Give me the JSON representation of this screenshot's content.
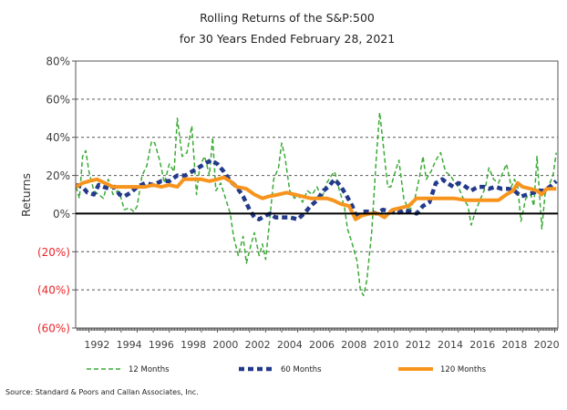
{
  "chart_data": {
    "type": "line",
    "title": "Rolling Returns of the S&P:500",
    "subtitle": "for 30 Years Ended February 28, 2021",
    "ylabel": "Returns",
    "xlabel": "",
    "xlim": [
      1991.17,
      2021.2
    ],
    "ylim": [
      -60,
      80
    ],
    "grid": "horizontal dashed",
    "legend_position": "bottom",
    "source": "Source: Standard & Poors and Callan Associates, Inc.",
    "y_ticks": [
      {
        "value": 80,
        "label": "80%"
      },
      {
        "value": 60,
        "label": "60%"
      },
      {
        "value": 40,
        "label": "40%"
      },
      {
        "value": 20,
        "label": "20%"
      },
      {
        "value": 0,
        "label": "0%"
      },
      {
        "value": -20,
        "label": "(20%)"
      },
      {
        "value": -40,
        "label": "(40%)"
      },
      {
        "value": -60,
        "label": "(60%)"
      }
    ],
    "x_ticks": [
      "1992",
      "1994",
      "1996",
      "1998",
      "2000",
      "2002",
      "2004",
      "2006",
      "2008",
      "2010",
      "2012",
      "2014",
      "2016",
      "2018",
      "2020"
    ],
    "colors": {
      "negative_label": "#e8262b",
      "axis_text": "#404040"
    },
    "series": [
      {
        "name": "12 Months",
        "color": "#3aaa35",
        "style": "dashed",
        "points": [
          [
            1991.2,
            14
          ],
          [
            1991.4,
            8
          ],
          [
            1991.6,
            30
          ],
          [
            1991.8,
            33
          ],
          [
            1992.0,
            22
          ],
          [
            1992.3,
            12
          ],
          [
            1992.6,
            10
          ],
          [
            1992.9,
            8
          ],
          [
            1993.2,
            18
          ],
          [
            1993.5,
            10
          ],
          [
            1993.8,
            12
          ],
          [
            1994.0,
            8
          ],
          [
            1994.2,
            2
          ],
          [
            1994.5,
            3
          ],
          [
            1994.8,
            1
          ],
          [
            1995.0,
            4
          ],
          [
            1995.3,
            20
          ],
          [
            1995.6,
            25
          ],
          [
            1995.9,
            38
          ],
          [
            1996.1,
            37
          ],
          [
            1996.4,
            28
          ],
          [
            1996.7,
            16
          ],
          [
            1997.0,
            26
          ],
          [
            1997.3,
            22
          ],
          [
            1997.5,
            50
          ],
          [
            1997.8,
            30
          ],
          [
            1998.1,
            32
          ],
          [
            1998.4,
            46
          ],
          [
            1998.7,
            10
          ],
          [
            1998.9,
            25
          ],
          [
            1999.2,
            30
          ],
          [
            1999.5,
            20
          ],
          [
            1999.7,
            40
          ],
          [
            1999.9,
            12
          ],
          [
            2000.2,
            16
          ],
          [
            2000.5,
            8
          ],
          [
            2000.8,
            0
          ],
          [
            2001.0,
            -12
          ],
          [
            2001.3,
            -22
          ],
          [
            2001.6,
            -12
          ],
          [
            2001.8,
            -26
          ],
          [
            2002.1,
            -16
          ],
          [
            2002.3,
            -10
          ],
          [
            2002.6,
            -22
          ],
          [
            2002.8,
            -16
          ],
          [
            2003.0,
            -24
          ],
          [
            2003.2,
            -8
          ],
          [
            2003.5,
            18
          ],
          [
            2003.8,
            24
          ],
          [
            2004.0,
            37
          ],
          [
            2004.2,
            30
          ],
          [
            2004.5,
            12
          ],
          [
            2004.8,
            8
          ],
          [
            2005.0,
            10
          ],
          [
            2005.3,
            6
          ],
          [
            2005.6,
            12
          ],
          [
            2005.9,
            10
          ],
          [
            2006.2,
            14
          ],
          [
            2006.5,
            8
          ],
          [
            2006.8,
            16
          ],
          [
            2007.1,
            20
          ],
          [
            2007.3,
            22
          ],
          [
            2007.6,
            12
          ],
          [
            2007.9,
            4
          ],
          [
            2008.1,
            -8
          ],
          [
            2008.4,
            -16
          ],
          [
            2008.7,
            -25
          ],
          [
            2008.9,
            -40
          ],
          [
            2009.1,
            -43
          ],
          [
            2009.3,
            -35
          ],
          [
            2009.6,
            -10
          ],
          [
            2009.9,
            30
          ],
          [
            2010.1,
            53
          ],
          [
            2010.3,
            38
          ],
          [
            2010.6,
            14
          ],
          [
            2010.8,
            14
          ],
          [
            2011.0,
            20
          ],
          [
            2011.3,
            28
          ],
          [
            2011.6,
            8
          ],
          [
            2011.8,
            4
          ],
          [
            2012.0,
            2
          ],
          [
            2012.3,
            8
          ],
          [
            2012.6,
            20
          ],
          [
            2012.8,
            30
          ],
          [
            2013.0,
            18
          ],
          [
            2013.3,
            22
          ],
          [
            2013.6,
            28
          ],
          [
            2013.9,
            32
          ],
          [
            2014.2,
            22
          ],
          [
            2014.5,
            20
          ],
          [
            2014.8,
            16
          ],
          [
            2015.0,
            14
          ],
          [
            2015.3,
            8
          ],
          [
            2015.6,
            4
          ],
          [
            2015.8,
            -6
          ],
          [
            2016.1,
            2
          ],
          [
            2016.4,
            8
          ],
          [
            2016.7,
            14
          ],
          [
            2016.9,
            24
          ],
          [
            2017.2,
            18
          ],
          [
            2017.5,
            16
          ],
          [
            2017.8,
            22
          ],
          [
            2018.0,
            26
          ],
          [
            2018.3,
            14
          ],
          [
            2018.5,
            18
          ],
          [
            2018.7,
            14
          ],
          [
            2018.9,
            -4
          ],
          [
            2019.2,
            8
          ],
          [
            2019.5,
            10
          ],
          [
            2019.7,
            4
          ],
          [
            2019.9,
            30
          ],
          [
            2020.2,
            -8
          ],
          [
            2020.4,
            10
          ],
          [
            2020.7,
            16
          ],
          [
            2020.9,
            20
          ],
          [
            2021.1,
            32
          ]
        ]
      },
      {
        "name": "60 Months",
        "color": "#233a8b",
        "style": "thick-dashed",
        "points": [
          [
            1991.2,
            15
          ],
          [
            1991.6,
            14
          ],
          [
            1991.9,
            11
          ],
          [
            1992.3,
            10
          ],
          [
            1992.6,
            15
          ],
          [
            1992.9,
            14
          ],
          [
            1993.3,
            13
          ],
          [
            1993.6,
            14
          ],
          [
            1993.9,
            10
          ],
          [
            1994.2,
            9
          ],
          [
            1994.6,
            11
          ],
          [
            1995.0,
            14
          ],
          [
            1995.5,
            16
          ],
          [
            1996.0,
            15
          ],
          [
            1996.5,
            17
          ],
          [
            1997.0,
            17
          ],
          [
            1997.5,
            20
          ],
          [
            1998.0,
            20
          ],
          [
            1998.4,
            22
          ],
          [
            1998.8,
            24
          ],
          [
            1999.2,
            26
          ],
          [
            1999.6,
            28
          ],
          [
            2000.0,
            26
          ],
          [
            2000.4,
            22
          ],
          [
            2000.8,
            17
          ],
          [
            2001.2,
            14
          ],
          [
            2001.6,
            9
          ],
          [
            2002.0,
            2
          ],
          [
            2002.3,
            -2
          ],
          [
            2002.6,
            -3
          ],
          [
            2003.0,
            -1
          ],
          [
            2003.3,
            0
          ],
          [
            2003.6,
            -2
          ],
          [
            2004.0,
            -2
          ],
          [
            2004.5,
            -2
          ],
          [
            2005.0,
            -3
          ],
          [
            2005.4,
            0
          ],
          [
            2005.8,
            4
          ],
          [
            2006.2,
            7
          ],
          [
            2006.6,
            12
          ],
          [
            2006.9,
            14
          ],
          [
            2007.3,
            18
          ],
          [
            2007.7,
            14
          ],
          [
            2008.0,
            10
          ],
          [
            2008.4,
            4
          ],
          [
            2008.7,
            -3
          ],
          [
            2009.0,
            1
          ],
          [
            2009.5,
            1
          ],
          [
            2009.9,
            0
          ],
          [
            2010.3,
            2
          ],
          [
            2010.8,
            1
          ],
          [
            2011.2,
            0
          ],
          [
            2011.6,
            2
          ],
          [
            2012.0,
            1
          ],
          [
            2012.4,
            0
          ],
          [
            2012.8,
            4
          ],
          [
            2013.2,
            6
          ],
          [
            2013.6,
            16
          ],
          [
            2014.0,
            18
          ],
          [
            2014.3,
            16
          ],
          [
            2014.7,
            14
          ],
          [
            2015.0,
            16
          ],
          [
            2015.3,
            15
          ],
          [
            2015.8,
            12
          ],
          [
            2016.2,
            14
          ],
          [
            2016.6,
            14
          ],
          [
            2016.9,
            13
          ],
          [
            2017.3,
            14
          ],
          [
            2017.7,
            13
          ],
          [
            2018.1,
            13
          ],
          [
            2018.5,
            12
          ],
          [
            2018.9,
            9
          ],
          [
            2019.3,
            10
          ],
          [
            2019.7,
            11
          ],
          [
            2020.0,
            12
          ],
          [
            2020.3,
            12
          ],
          [
            2020.7,
            14
          ],
          [
            2021.1,
            17
          ]
        ]
      },
      {
        "name": "120 Months",
        "color": "#f7941d",
        "style": "solid",
        "points": [
          [
            1991.2,
            14
          ],
          [
            1991.6,
            16
          ],
          [
            1992.0,
            17
          ],
          [
            1992.5,
            18
          ],
          [
            1993.0,
            16
          ],
          [
            1993.5,
            14
          ],
          [
            1994.0,
            14
          ],
          [
            1994.5,
            14
          ],
          [
            1995.0,
            14
          ],
          [
            1995.5,
            14
          ],
          [
            1996.0,
            15
          ],
          [
            1996.5,
            14
          ],
          [
            1997.0,
            15
          ],
          [
            1997.5,
            14
          ],
          [
            1997.9,
            18
          ],
          [
            1998.5,
            18
          ],
          [
            1999.0,
            18
          ],
          [
            1999.5,
            17
          ],
          [
            2000.0,
            18
          ],
          [
            2000.4,
            19
          ],
          [
            2000.8,
            17
          ],
          [
            2001.2,
            14
          ],
          [
            2001.8,
            13
          ],
          [
            2002.3,
            10
          ],
          [
            2002.8,
            8
          ],
          [
            2003.2,
            9
          ],
          [
            2003.8,
            10
          ],
          [
            2004.3,
            11
          ],
          [
            2004.8,
            10
          ],
          [
            2005.3,
            9
          ],
          [
            2005.8,
            8
          ],
          [
            2006.3,
            8
          ],
          [
            2006.8,
            8
          ],
          [
            2007.2,
            7
          ],
          [
            2007.7,
            5
          ],
          [
            2008.2,
            4
          ],
          [
            2008.6,
            -3
          ],
          [
            2009.0,
            -1
          ],
          [
            2009.5,
            0
          ],
          [
            2010.0,
            0
          ],
          [
            2010.4,
            -2
          ],
          [
            2010.9,
            2
          ],
          [
            2011.4,
            3
          ],
          [
            2011.9,
            4
          ],
          [
            2012.4,
            8
          ],
          [
            2012.8,
            8
          ],
          [
            2013.3,
            8
          ],
          [
            2014.0,
            8
          ],
          [
            2014.7,
            8
          ],
          [
            2015.5,
            7
          ],
          [
            2016.0,
            7
          ],
          [
            2016.8,
            7
          ],
          [
            2017.5,
            7
          ],
          [
            2018.0,
            10
          ],
          [
            2018.4,
            12
          ],
          [
            2018.7,
            16
          ],
          [
            2019.0,
            14
          ],
          [
            2019.5,
            13
          ],
          [
            2019.9,
            12
          ],
          [
            2020.2,
            10
          ],
          [
            2020.5,
            13
          ],
          [
            2021.1,
            13
          ]
        ]
      }
    ]
  }
}
